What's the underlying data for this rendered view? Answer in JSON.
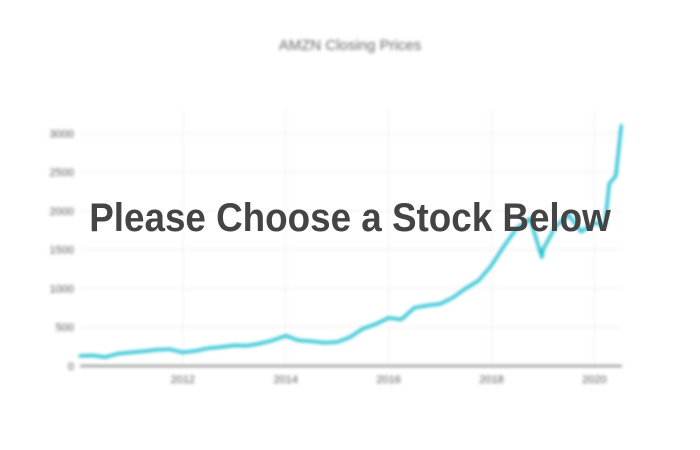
{
  "overlay": {
    "message": "Please Choose a Stock Below"
  },
  "colors": {
    "line": "#17becf",
    "grid": "#eeeeee",
    "axis": "#444444"
  },
  "chart_data": {
    "type": "line",
    "title": "AMZN Closing Prices",
    "xlabel": "",
    "ylabel": "",
    "xlim": [
      "2010-01-01",
      "2020-07-15"
    ],
    "ylim": [
      0,
      3300
    ],
    "yticks": [
      0,
      500,
      1000,
      1500,
      2000,
      2500,
      3000
    ],
    "ytick_labels": [
      "0",
      "500",
      "1000",
      "1500",
      "2000",
      "2500",
      "3000"
    ],
    "xticks": [
      "2012-01-01",
      "2014-01-01",
      "2016-01-01",
      "2018-01-01",
      "2020-01-01"
    ],
    "xtick_labels": [
      "2012",
      "2014",
      "2016",
      "2018",
      "2020"
    ],
    "grid": true,
    "series": [
      {
        "x": [
          "2010-01-01",
          "2010-04-01",
          "2010-07-01",
          "2010-10-01",
          "2011-01-01",
          "2011-04-01",
          "2011-07-01",
          "2011-10-01",
          "2012-01-01",
          "2012-04-01",
          "2012-07-01",
          "2012-10-01",
          "2013-01-01",
          "2013-04-01",
          "2013-07-01",
          "2013-10-01",
          "2014-01-01",
          "2014-04-01",
          "2014-07-01",
          "2014-10-01",
          "2015-01-01",
          "2015-04-01",
          "2015-07-01",
          "2015-10-01",
          "2016-01-01",
          "2016-04-01",
          "2016-07-01",
          "2016-10-01",
          "2017-01-01",
          "2017-04-01",
          "2017-07-01",
          "2017-10-01",
          "2018-01-01",
          "2018-04-01",
          "2018-07-01",
          "2018-10-01",
          "2018-12-24",
          "2019-01-01",
          "2019-04-01",
          "2019-07-01",
          "2019-10-01",
          "2020-01-01",
          "2020-03-15",
          "2020-04-15",
          "2020-06-01",
          "2020-07-10"
        ],
        "values": [
          130,
          135,
          115,
          160,
          175,
          190,
          210,
          215,
          175,
          195,
          230,
          245,
          265,
          260,
          290,
          330,
          390,
          330,
          320,
          300,
          310,
          370,
          480,
          540,
          620,
          600,
          750,
          780,
          800,
          880,
          1000,
          1100,
          1300,
          1550,
          1780,
          1900,
          1400,
          1500,
          1800,
          1950,
          1730,
          1850,
          1800,
          2350,
          2450,
          3100
        ]
      }
    ]
  }
}
